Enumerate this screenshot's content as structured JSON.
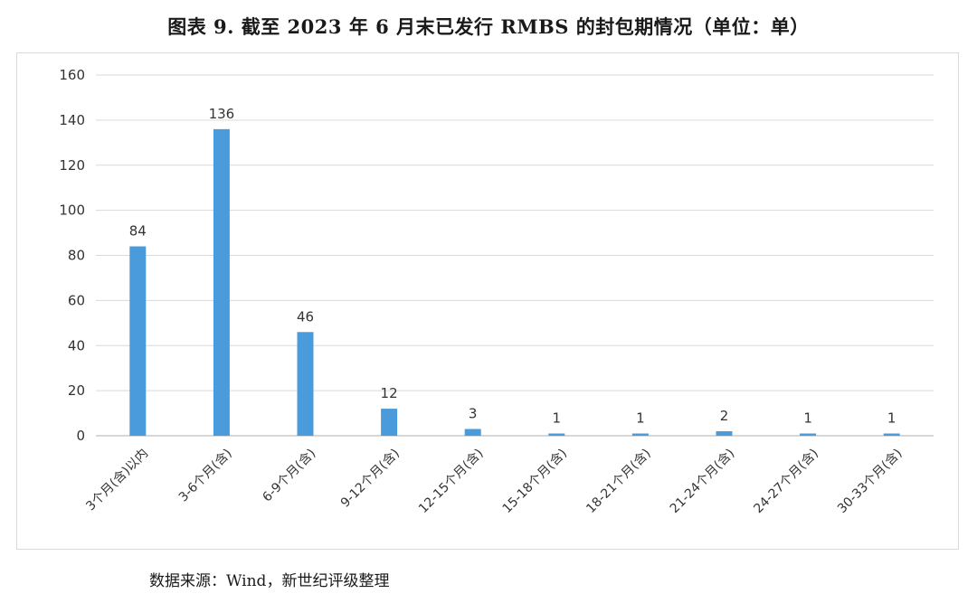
{
  "title": "图表 9.   截至 2023 年 6 月末已发行 RMBS 的封包期情况（单位：单）",
  "source": "数据来源：Wind，新世纪评级整理",
  "colors": {
    "bar": "#4a9bdc",
    "grid": "#d9d9d9",
    "axis": "#bfbfbf",
    "text": "#333333"
  },
  "chart_data": {
    "type": "bar",
    "categories": [
      "3个月(含)以内",
      "3-6个月(含)",
      "6-9个月(含)",
      "9-12个月(含)",
      "12-15个月(含)",
      "15-18个月(含)",
      "18-21个月(含)",
      "21-24个月(含)",
      "24-27个月(含)",
      "30-33个月(含)"
    ],
    "values": [
      84,
      136,
      46,
      12,
      3,
      1,
      1,
      2,
      1,
      1
    ],
    "ylim": [
      0,
      160
    ],
    "yticks": [
      0,
      20,
      40,
      60,
      80,
      100,
      120,
      140,
      160
    ],
    "grid": true,
    "data_labels": true,
    "legend": "none"
  }
}
